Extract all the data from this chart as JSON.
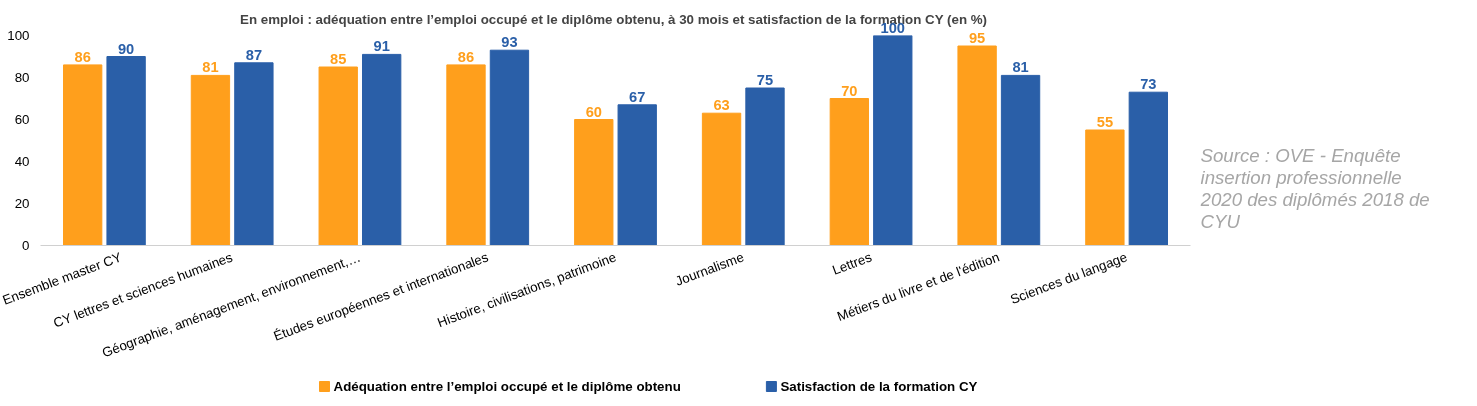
{
  "chart_data": {
    "type": "bar",
    "title": "En emploi : adéquation entre l’emploi occupé et le diplôme obtenu, à 30 mois  et satisfaction de la formation CY (en %)",
    "categories": [
      "Ensemble master CY",
      "CY lettres et sciences humaines",
      "Géographie, aménagement, environnement,…",
      "Études européennes et internationales",
      "Histoire, civilisations, patrimoine",
      "Journalisme",
      "Lettres",
      "Métiers du livre et de l'édition",
      "Sciences du langage"
    ],
    "series": [
      {
        "name": "Adéquation entre l’emploi occupé et le diplôme obtenu",
        "color": "#ff9f1c",
        "values": [
          86,
          81,
          85,
          86,
          60,
          63,
          70,
          95,
          55
        ]
      },
      {
        "name": "Satisfaction de la formation CY",
        "color": "#2a5fa8",
        "values": [
          90,
          87,
          91,
          93,
          67,
          75,
          100,
          81,
          73
        ]
      }
    ],
    "ylim": [
      0,
      100
    ],
    "yticks": [
      0,
      20,
      40,
      60,
      80,
      100
    ],
    "grid": false,
    "legend": "bottom",
    "data_labels": true,
    "annotations": [
      "Source : OVE - Enquête insertion professionnelle 2020 des diplômés 2018 de CYU"
    ]
  }
}
